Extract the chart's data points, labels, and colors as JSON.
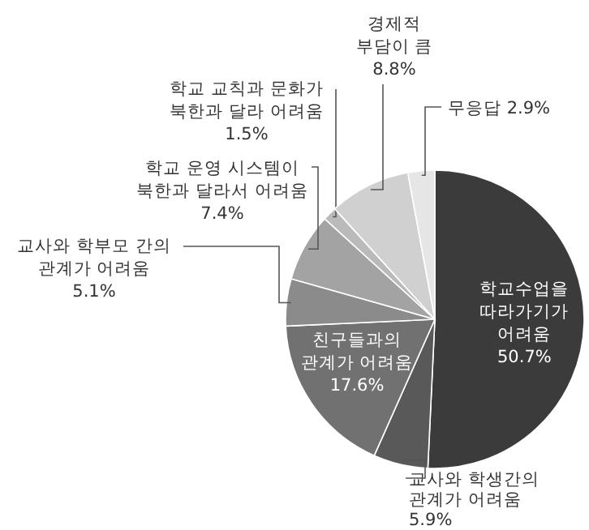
{
  "chart_data": {
    "type": "pie",
    "categories": [
      "학교수업을\n따라가기가\n어려움",
      "교사와 학생간의\n관계가 어려움",
      "친구들과의\n관계가 어려움",
      "교사와 학부모 간의\n관계가 어려움",
      "학교 운영 시스템이\n북한과 달라서 어려움",
      "학교 교칙과 문화가\n북한과 달라 어려움",
      "경제적\n부담이 큼",
      "무응답"
    ],
    "values": [
      50.7,
      5.9,
      17.6,
      5.1,
      7.4,
      1.5,
      8.8,
      2.9
    ],
    "value_labels": [
      "50.7%",
      "5.9%",
      "17.6%",
      "5.1%",
      "7.4%",
      "1.5%",
      "8.8%",
      "2.9%"
    ],
    "colors": [
      "#3b3b3b",
      "#595959",
      "#717171",
      "#8b8b8b",
      "#a3a3a3",
      "#bababa",
      "#d0d0d0",
      "#e6e6e6"
    ]
  }
}
